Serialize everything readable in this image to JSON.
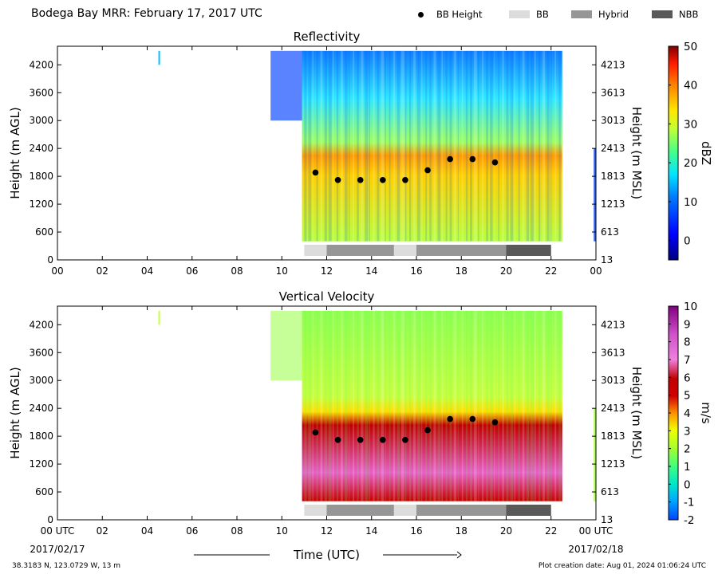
{
  "header": {
    "title": "Bodega Bay MRR:  February 17, 2017 UTC",
    "legend": [
      {
        "label": "BB Height",
        "kind": "dot",
        "color": "#000000"
      },
      {
        "label": "BB",
        "kind": "swatch",
        "color": "#dcdcdc"
      },
      {
        "label": "Hybrid",
        "kind": "swatch",
        "color": "#969696"
      },
      {
        "label": "NBB",
        "kind": "swatch",
        "color": "#595959"
      }
    ]
  },
  "footer": {
    "coords": "38.3183 N, 123.0729 W, 13 m",
    "created": "Plot creation date: Aug 01, 2024 01:06:24 UTC"
  },
  "chart_data": [
    {
      "type": "heatmap",
      "title": "Reflectivity",
      "ylabel": "Height (m AGL)",
      "y2label": "Height (m MSL)",
      "ylim": [
        0,
        4600
      ],
      "y_ticks": [
        "0",
        "600",
        "1200",
        "1800",
        "2400",
        "3000",
        "3600",
        "4200"
      ],
      "y2_ticks": [
        "13",
        "613",
        "1213",
        "1813",
        "2413",
        "3013",
        "3613",
        "4213"
      ],
      "x_ticks": [
        "00",
        "02",
        "04",
        "06",
        "08",
        "10",
        "12",
        "14",
        "16",
        "18",
        "20",
        "22",
        "00"
      ],
      "xlim_hours": [
        0,
        24
      ],
      "colorbar": {
        "label": "dBZ",
        "range": [
          -5,
          50
        ],
        "ticks": [
          "0",
          "10",
          "20",
          "30",
          "40",
          "50"
        ]
      },
      "bb_height_points": [
        {
          "x": 11.5,
          "y": 1880
        },
        {
          "x": 12.5,
          "y": 1720
        },
        {
          "x": 13.5,
          "y": 1720
        },
        {
          "x": 14.5,
          "y": 1720
        },
        {
          "x": 15.5,
          "y": 1720
        },
        {
          "x": 16.5,
          "y": 1930
        },
        {
          "x": 17.5,
          "y": 2170
        },
        {
          "x": 18.5,
          "y": 2170
        },
        {
          "x": 19.5,
          "y": 2100
        }
      ],
      "bb_classification": [
        {
          "start": 11,
          "end": 12,
          "type": "BB"
        },
        {
          "start": 12,
          "end": 15,
          "type": "Hybrid"
        },
        {
          "start": 15,
          "end": 16,
          "type": "BB"
        },
        {
          "start": 16,
          "end": 20,
          "type": "Hybrid"
        },
        {
          "start": 20,
          "end": 22,
          "type": "NBB"
        }
      ]
    },
    {
      "type": "heatmap",
      "title": "Vertical Velocity",
      "ylabel": "Height (m AGL)",
      "y2label": "Height (m MSL)",
      "ylim": [
        0,
        4600
      ],
      "y_ticks": [
        "0",
        "600",
        "1200",
        "1800",
        "2400",
        "3000",
        "3600",
        "4200"
      ],
      "y2_ticks": [
        "13",
        "613",
        "1213",
        "1813",
        "2413",
        "3013",
        "3613",
        "4213"
      ],
      "x_ticks": [
        "00 UTC",
        "02",
        "04",
        "06",
        "08",
        "10",
        "12",
        "14",
        "16",
        "18",
        "20",
        "22",
        "00 UTC"
      ],
      "x_dates": [
        "2017/02/17",
        "2017/02/18"
      ],
      "xlabel": "Time (UTC)",
      "xlim_hours": [
        0,
        24
      ],
      "colorbar": {
        "label": "m/s",
        "range": [
          -2,
          10
        ],
        "ticks": [
          "-2",
          "-1",
          "0",
          "1",
          "2",
          "3",
          "4",
          "5",
          "6",
          "7",
          "8",
          "9",
          "10"
        ]
      },
      "bb_height_points": [
        {
          "x": 11.5,
          "y": 1880
        },
        {
          "x": 12.5,
          "y": 1720
        },
        {
          "x": 13.5,
          "y": 1720
        },
        {
          "x": 14.5,
          "y": 1720
        },
        {
          "x": 15.5,
          "y": 1720
        },
        {
          "x": 16.5,
          "y": 1930
        },
        {
          "x": 17.5,
          "y": 2170
        },
        {
          "x": 18.5,
          "y": 2170
        },
        {
          "x": 19.5,
          "y": 2100
        }
      ],
      "bb_classification": [
        {
          "start": 11,
          "end": 12,
          "type": "BB"
        },
        {
          "start": 12,
          "end": 15,
          "type": "Hybrid"
        },
        {
          "start": 15,
          "end": 16,
          "type": "BB"
        },
        {
          "start": 16,
          "end": 20,
          "type": "Hybrid"
        },
        {
          "start": 20,
          "end": 22,
          "type": "NBB"
        }
      ]
    }
  ]
}
